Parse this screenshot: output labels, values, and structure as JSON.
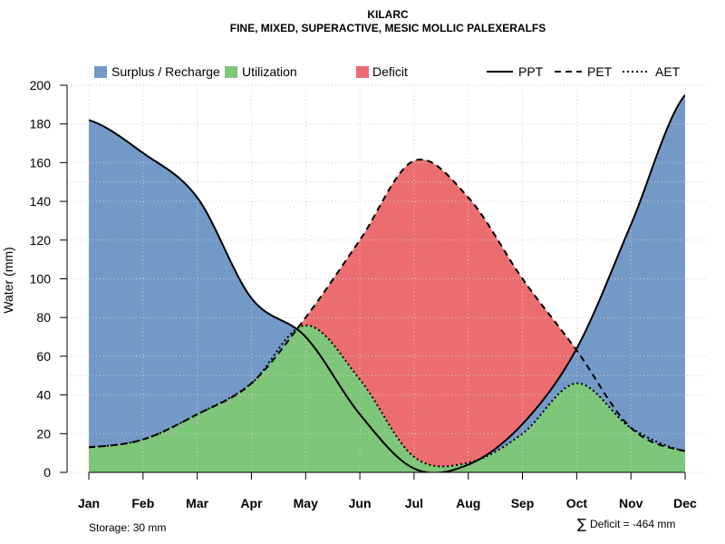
{
  "colors": {
    "surplus": "#7399c7",
    "utilization": "#7ec679",
    "deficit": "#ec6d6f",
    "grid": "#cfcfcf",
    "line": "#000000"
  },
  "footer": {
    "storage": "Storage: 30 mm",
    "deficit_symbol": "∑",
    "deficit_text": "Deficit = -464 mm"
  },
  "chart_data": {
    "type": "area",
    "title": "KILARC",
    "subtitle": "FINE, MIXED, SUPERACTIVE, MESIC MOLLIC PALEXERALFS",
    "xlabel": "",
    "ylabel": "Water (mm)",
    "ylim": [
      0,
      200
    ],
    "yticks": [
      0,
      20,
      40,
      60,
      80,
      100,
      120,
      140,
      160,
      180,
      200
    ],
    "grid": true,
    "categories": [
      "Jan",
      "Feb",
      "Mar",
      "Apr",
      "May",
      "Jun",
      "Jul",
      "Aug",
      "Sep",
      "Oct",
      "Nov",
      "Dec"
    ],
    "series": [
      {
        "name": "PPT",
        "style": "solid",
        "values": [
          182,
          165,
          142,
          90,
          70,
          30,
          2,
          4,
          25,
          64,
          128,
          195
        ]
      },
      {
        "name": "PET",
        "style": "dashed",
        "values": [
          13,
          17,
          30,
          46,
          80,
          120,
          161,
          142,
          100,
          63,
          23,
          11
        ]
      },
      {
        "name": "AET",
        "style": "dotted",
        "values": [
          13,
          17,
          30,
          46,
          76,
          48,
          8,
          5,
          20,
          46,
          23,
          11
        ]
      }
    ],
    "legend": {
      "placement": "top",
      "areas": [
        "Surplus / Recharge",
        "Utilization",
        "Deficit"
      ],
      "lines": [
        "PPT",
        "PET",
        "AET"
      ]
    }
  }
}
